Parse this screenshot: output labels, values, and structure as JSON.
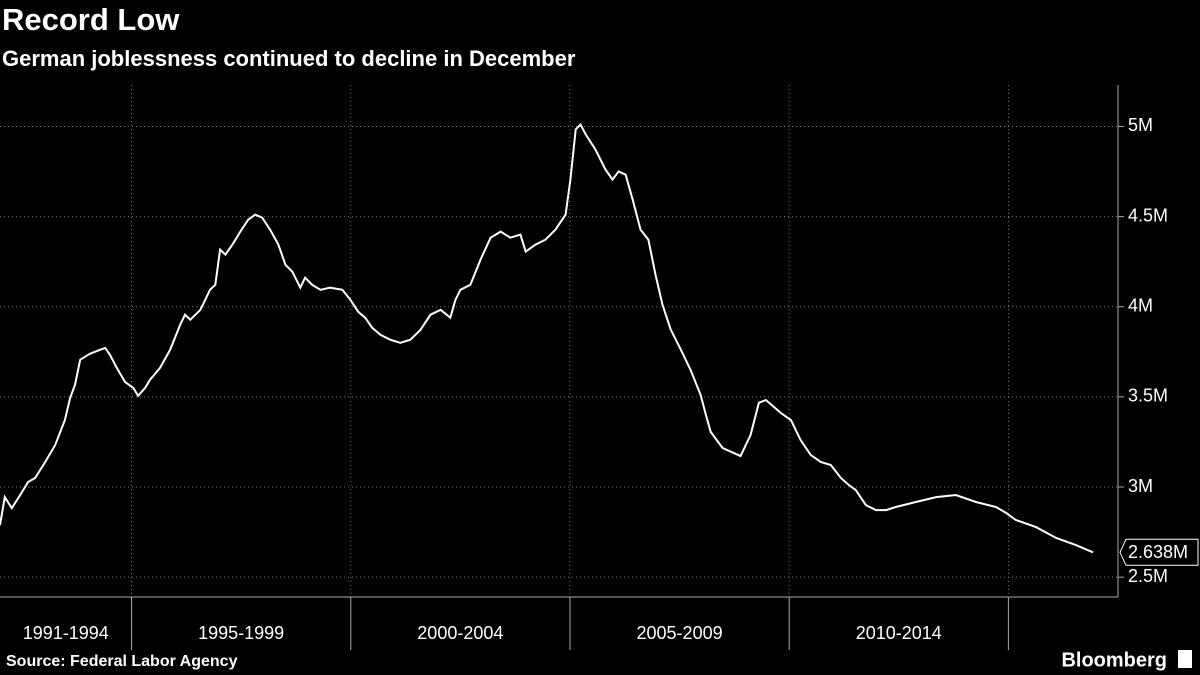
{
  "chart_data": {
    "type": "line",
    "title": "Record Low",
    "subtitle": "German joblessness continued to decline in December",
    "source": "Source: Federal Labor Agency",
    "brand": "Bloomberg",
    "x": [
      1992.0,
      1992.11,
      1992.27,
      1992.46,
      1992.64,
      1992.8,
      1993.03,
      1993.26,
      1993.48,
      1993.6,
      1993.71,
      1993.83,
      1994.05,
      1994.28,
      1994.4,
      1994.51,
      1994.69,
      1994.85,
      1995.04,
      1995.15,
      1995.31,
      1995.42,
      1995.65,
      1995.88,
      1996.11,
      1996.22,
      1996.34,
      1996.57,
      1996.79,
      1996.91,
      1997.02,
      1997.14,
      1997.3,
      1997.48,
      1997.66,
      1997.82,
      1997.98,
      1998.16,
      1998.35,
      1998.51,
      1998.67,
      1998.85,
      1998.96,
      1999.12,
      1999.31,
      1999.53,
      1999.81,
      1999.99,
      2000.17,
      2000.33,
      2000.49,
      2000.68,
      2000.9,
      2001.13,
      2001.36,
      2001.59,
      2001.82,
      2002.05,
      2002.27,
      2002.39,
      2002.5,
      2002.73,
      2002.96,
      2003.19,
      2003.42,
      2003.64,
      2003.87,
      2003.99,
      2004.21,
      2004.44,
      2004.67,
      2004.9,
      2005.01,
      2005.13,
      2005.24,
      2005.36,
      2005.58,
      2005.81,
      2005.97,
      2006.11,
      2006.27,
      2006.43,
      2006.61,
      2006.79,
      2006.95,
      2007.11,
      2007.3,
      2007.53,
      2007.75,
      2007.98,
      2008.1,
      2008.21,
      2008.48,
      2008.89,
      2009.12,
      2009.31,
      2009.47,
      2009.81,
      2010.04,
      2010.26,
      2010.49,
      2010.72,
      2010.95,
      2011.18,
      2011.36,
      2011.52,
      2011.75,
      2011.98,
      2012.21,
      2012.43,
      2012.89,
      2013.35,
      2013.8,
      2014.26,
      2014.72,
      2014.95,
      2015.17,
      2015.63,
      2016.09,
      2016.54,
      2016.93
    ],
    "series": [
      {
        "color": "#ffffff",
        "end_label": "2.638M",
        "values": [
          2.789,
          2.944,
          2.883,
          2.956,
          3.028,
          3.05,
          3.139,
          3.233,
          3.372,
          3.494,
          3.567,
          3.706,
          3.739,
          3.761,
          3.772,
          3.733,
          3.65,
          3.583,
          3.55,
          3.506,
          3.55,
          3.594,
          3.661,
          3.761,
          3.9,
          3.956,
          3.928,
          3.983,
          4.094,
          4.122,
          4.317,
          4.289,
          4.344,
          4.417,
          4.483,
          4.511,
          4.494,
          4.428,
          4.344,
          4.233,
          4.194,
          4.106,
          4.161,
          4.122,
          4.094,
          4.106,
          4.094,
          4.039,
          3.972,
          3.939,
          3.883,
          3.844,
          3.817,
          3.8,
          3.817,
          3.872,
          3.956,
          3.983,
          3.939,
          4.039,
          4.094,
          4.122,
          4.261,
          4.383,
          4.417,
          4.383,
          4.4,
          4.306,
          4.344,
          4.372,
          4.428,
          4.511,
          4.706,
          4.983,
          5.011,
          4.956,
          4.872,
          4.761,
          4.706,
          4.75,
          4.733,
          4.594,
          4.428,
          4.372,
          4.178,
          4.011,
          3.872,
          3.761,
          3.65,
          3.511,
          3.4,
          3.306,
          3.217,
          3.172,
          3.289,
          3.467,
          3.483,
          3.411,
          3.372,
          3.261,
          3.178,
          3.139,
          3.122,
          3.05,
          3.011,
          2.983,
          2.9,
          2.872,
          2.872,
          2.889,
          2.917,
          2.944,
          2.956,
          2.917,
          2.889,
          2.856,
          2.817,
          2.778,
          2.717,
          2.678,
          2.638
        ]
      }
    ],
    "xlim": [
      1992,
      2017.5
    ],
    "xticks": [
      1995,
      2000,
      2005,
      2010,
      2015
    ],
    "x_period_labels": [
      "1991-1994",
      "1995-1999",
      "2000-2004",
      "2005-2009",
      "2010-2014"
    ],
    "ylim": [
      2.39,
      5.23
    ],
    "yticks": [
      {
        "value": 2.5,
        "label": "2.5M"
      },
      {
        "value": 3,
        "label": "3M"
      },
      {
        "value": 3.5,
        "label": "3.5M"
      },
      {
        "value": 4,
        "label": "4M"
      },
      {
        "value": 4.5,
        "label": "4.5M"
      },
      {
        "value": 5,
        "label": "5M"
      }
    ],
    "grid": true
  }
}
